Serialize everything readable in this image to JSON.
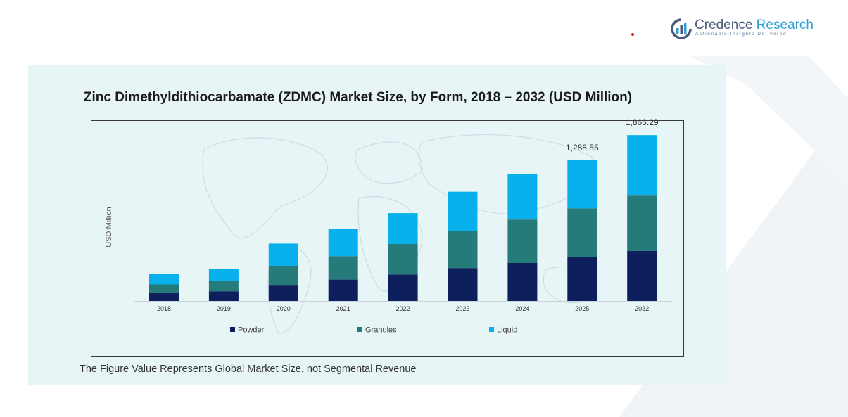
{
  "brand": {
    "name_part1": "Credence",
    "name_part2": "Research",
    "tagline": "Actionable Insights Delivered",
    "icon": "credence-logo-icon",
    "colors": {
      "primary": "#4a5a78",
      "accent": "#2f9fd6"
    }
  },
  "footnote": "The Figure Value Represents Global Market Size, not Segmental Revenue",
  "chart_data": {
    "type": "bar",
    "stacked": true,
    "title": "Zinc Dimethyldithiocarbamate (ZDMC) Market Size, by Form, 2018 – 2032 (USD Million)",
    "ylabel": "USD Million",
    "xlabel": "",
    "categories": [
      "2018",
      "2019",
      "2020",
      "2021",
      "2022",
      "2023",
      "2024",
      "2025",
      "2032"
    ],
    "series": [
      {
        "name": "Powder",
        "color": "#0d1f5c",
        "values": [
          98,
          123,
          205,
          272,
          336,
          418,
          483,
          555,
          637
        ]
      },
      {
        "name": "Granules",
        "color": "#257a7a",
        "values": [
          112,
          132,
          242,
          298,
          388,
          468,
          552,
          622,
          702
        ]
      },
      {
        "name": "Liquid",
        "color": "#08b0ec",
        "values": [
          130,
          150,
          282,
          342,
          392,
          502,
          582,
          612,
          768
        ]
      }
    ],
    "data_labels": [
      {
        "category": "2025",
        "text": "1,288.55"
      },
      {
        "category": "2032",
        "text": "1,866.29"
      }
    ],
    "ylim": [
      0,
      2100
    ],
    "grid": false,
    "legend_position": "bottom"
  }
}
